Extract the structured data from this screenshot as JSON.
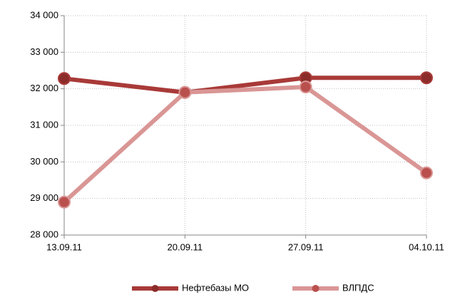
{
  "chart_data": {
    "type": "line",
    "categories": [
      "13.09.11",
      "20.09.11",
      "27.09.11",
      "04.10.11"
    ],
    "series": [
      {
        "name": "Нефтебазы МО",
        "color": "#a83a38",
        "marker_color": "#8b2c2a",
        "values": [
          32280,
          31900,
          32300,
          32300
        ]
      },
      {
        "name": "ВЛПДС",
        "color": "#d99695",
        "marker_color": "#b9504e",
        "values": [
          28900,
          31900,
          32050,
          29700
        ]
      }
    ],
    "ylim": [
      28000,
      34000
    ],
    "yticks": [
      {
        "value": 28000,
        "label": "28 000"
      },
      {
        "value": 29000,
        "label": "29 000"
      },
      {
        "value": 30000,
        "label": "30 000"
      },
      {
        "value": 31000,
        "label": "31 000"
      },
      {
        "value": 32000,
        "label": "32 000"
      },
      {
        "value": 33000,
        "label": "33 000"
      },
      {
        "value": 34000,
        "label": "34 000"
      }
    ],
    "grid": true,
    "legend": "bottom"
  }
}
